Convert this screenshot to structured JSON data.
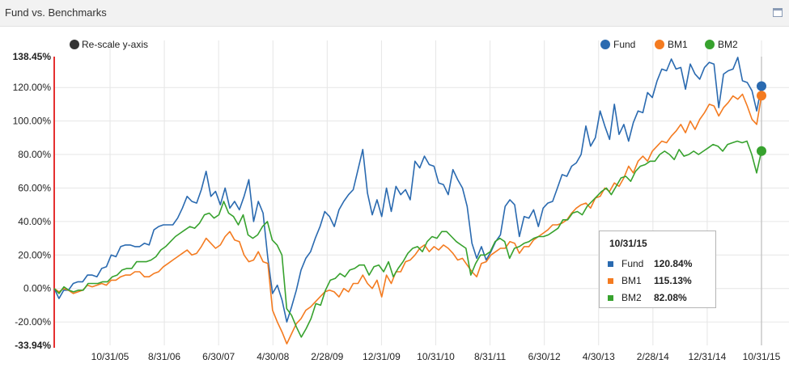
{
  "header": {
    "title": "Fund vs. Benchmarks"
  },
  "controls": {
    "rescale_label": "Re-scale y-axis"
  },
  "colors": {
    "fund": "#2a6ab0",
    "bm1": "#f47b20",
    "bm2": "#37a22e",
    "cursor": "#c8c8c8",
    "left_axis": "#e53030"
  },
  "tooltip": {
    "date": "10/31/15",
    "rows": [
      {
        "name": "Fund",
        "value": "120.84%"
      },
      {
        "name": "BM1",
        "value": "115.13%"
      },
      {
        "name": "BM2",
        "value": "82.08%"
      }
    ]
  },
  "chart_data": {
    "type": "line",
    "title": "Fund vs. Benchmarks",
    "xlabel": "",
    "ylabel": "",
    "ylim": [
      -33.94,
      138.45
    ],
    "y_extreme_labels": [
      "138.45%",
      "-33.94%"
    ],
    "y_ticks": [
      -20,
      0,
      20,
      40,
      60,
      80,
      100,
      120
    ],
    "y_tick_labels": [
      "-20.00%",
      "0.00%",
      "20.00%",
      "40.00%",
      "60.00%",
      "80.00%",
      "100.00%",
      "120.00%"
    ],
    "x_tick_labels": [
      "10/31/05",
      "8/31/06",
      "6/30/07",
      "4/30/08",
      "2/28/09",
      "12/31/09",
      "10/31/10",
      "8/31/11",
      "6/30/12",
      "4/30/13",
      "2/28/14",
      "12/31/14",
      "10/31/15"
    ],
    "grid": true,
    "legend": "top-right",
    "series": [
      {
        "name": "Fund",
        "values": [
          0,
          -6,
          -1,
          -1,
          3,
          4,
          4,
          8,
          8,
          7,
          12,
          13,
          20,
          19,
          25,
          26,
          26,
          25,
          25,
          27,
          26,
          35,
          37,
          38,
          38,
          38,
          42,
          48,
          55,
          52,
          51,
          59,
          70,
          55,
          58,
          50,
          60,
          48,
          52,
          47,
          55,
          65,
          40,
          52,
          45,
          18,
          -3,
          2,
          -7,
          -20,
          -11,
          -1,
          11,
          18,
          22,
          30,
          37,
          46,
          43,
          37,
          47,
          52,
          56,
          59,
          71,
          83,
          57,
          44,
          53,
          43,
          60,
          46,
          61,
          56,
          59,
          53,
          76,
          72,
          79,
          74,
          73,
          63,
          62,
          56,
          71,
          65,
          60,
          49,
          27,
          18,
          25,
          17,
          22,
          28,
          32,
          49,
          53,
          50,
          31,
          43,
          42,
          47,
          37,
          48,
          51,
          52,
          60,
          68,
          67,
          73,
          75,
          80,
          97,
          85,
          90,
          106,
          97,
          89,
          110,
          92,
          98,
          88,
          99,
          106,
          105,
          117,
          114,
          124,
          131,
          130,
          137,
          131,
          132,
          119,
          134,
          128,
          125,
          132,
          135,
          134,
          108,
          128,
          130,
          131,
          138,
          124,
          123,
          118,
          106,
          120.84
        ]
      },
      {
        "name": "BM1",
        "values": [
          0,
          -2,
          0,
          -1,
          -3,
          -2,
          -1,
          2,
          1,
          2,
          3,
          2,
          5,
          5,
          7,
          8,
          8,
          10,
          10,
          7,
          7,
          9,
          10,
          13,
          15,
          17,
          19,
          21,
          23,
          20,
          21,
          25,
          30,
          27,
          24,
          26,
          31,
          34,
          29,
          28,
          20,
          16,
          17,
          22,
          16,
          15,
          -13,
          -20,
          -26,
          -33,
          -27,
          -21,
          -18,
          -13,
          -11,
          -8,
          -5,
          -2,
          -1,
          -2,
          -5,
          0,
          -2,
          3,
          3,
          8,
          3,
          0,
          5,
          -5,
          8,
          3,
          10,
          10,
          16,
          17,
          20,
          24,
          26,
          22,
          25,
          23,
          26,
          24,
          21,
          17,
          18,
          14,
          10,
          7,
          15,
          16,
          20,
          22,
          24,
          24,
          28,
          27,
          21,
          25,
          25,
          29,
          31,
          33,
          35,
          38,
          38,
          39,
          41,
          45,
          48,
          50,
          51,
          48,
          54,
          55,
          60,
          58,
          63,
          61,
          66,
          73,
          69,
          76,
          79,
          76,
          82,
          85,
          88,
          87,
          91,
          94,
          98,
          93,
          100,
          95,
          101,
          105,
          110,
          109,
          103,
          108,
          111,
          115,
          113,
          116,
          109,
          101,
          98,
          115.13
        ]
      },
      {
        "name": "BM2",
        "values": [
          0,
          -3,
          1,
          -1,
          -2,
          -1,
          -1,
          3,
          3,
          3,
          4,
          4,
          7,
          8,
          11,
          12,
          12,
          16,
          16,
          16,
          17,
          19,
          23,
          25,
          28,
          31,
          33,
          35,
          37,
          36,
          39,
          44,
          45,
          42,
          44,
          52,
          45,
          43,
          38,
          44,
          32,
          30,
          32,
          37,
          40,
          29,
          26,
          20,
          -12,
          -16,
          -23,
          -29,
          -24,
          -18,
          -9,
          -10,
          -1,
          5,
          6,
          9,
          7,
          11,
          12,
          14,
          14,
          8,
          13,
          14,
          10,
          16,
          7,
          12,
          16,
          21,
          24,
          25,
          22,
          28,
          31,
          30,
          34,
          34,
          31,
          28,
          26,
          24,
          8,
          15,
          20,
          20,
          22,
          28,
          30,
          28,
          18,
          24,
          25,
          27,
          28,
          30,
          31,
          31,
          32,
          34,
          36,
          41,
          41,
          45,
          46,
          44,
          49,
          52,
          55,
          58,
          60,
          56,
          61,
          66,
          67,
          64,
          70,
          73,
          74,
          76,
          76,
          80,
          82,
          80,
          77,
          83,
          79,
          80,
          82,
          80,
          82,
          84,
          86,
          85,
          82,
          86,
          87,
          88,
          87,
          88,
          80,
          69,
          82.08
        ]
      }
    ]
  }
}
